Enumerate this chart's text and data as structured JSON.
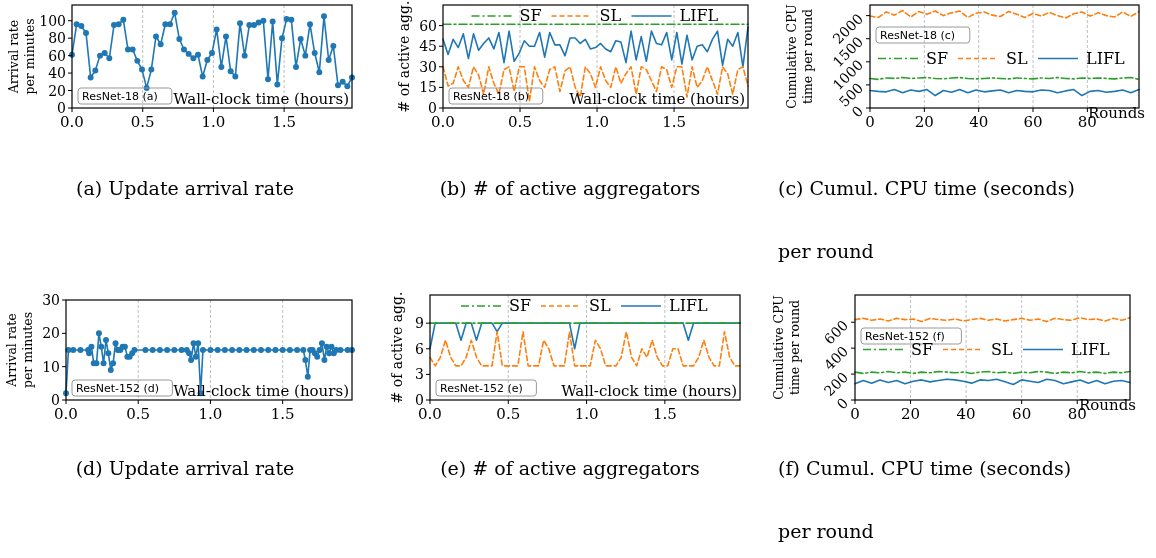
{
  "chart_data": [
    {
      "type": "line",
      "title": "(a) Update arrival rate",
      "xlabel": "Wall-clock time (hours)",
      "ylabel": "Arrival rate per minutes",
      "annotations": [
        "ResNet-18 (a)"
      ],
      "x": [
        0,
        0.033,
        0.066,
        0.099,
        0.132,
        0.165,
        0.198,
        0.231,
        0.264,
        0.297,
        0.33,
        0.363,
        0.396,
        0.429,
        0.462,
        0.495,
        0.528,
        0.561,
        0.594,
        0.627,
        0.66,
        0.693,
        0.726,
        0.759,
        0.792,
        0.825,
        0.858,
        0.891,
        0.924,
        0.957,
        0.99,
        1.023,
        1.056,
        1.089,
        1.122,
        1.155,
        1.188,
        1.221,
        1.254,
        1.287,
        1.32,
        1.353,
        1.386,
        1.419,
        1.452,
        1.485,
        1.518,
        1.551,
        1.584,
        1.617,
        1.65,
        1.683,
        1.716,
        1.749,
        1.782,
        1.815,
        1.848,
        1.881,
        1.914,
        1.947,
        1.98
      ],
      "series": [
        {
          "color": "#1f77b4",
          "values": [
            61,
            96,
            94,
            86,
            35,
            43,
            60,
            63,
            57,
            95,
            96,
            101,
            67,
            67,
            54,
            44,
            23,
            44,
            82,
            73,
            96,
            96,
            109,
            79,
            67,
            62,
            57,
            61,
            36,
            55,
            63,
            90,
            47,
            82,
            42,
            36,
            97,
            60,
            95,
            95,
            98,
            100,
            33,
            99,
            27,
            80,
            102,
            101,
            47,
            79,
            60,
            96,
            63,
            41,
            105,
            55,
            71,
            26,
            30,
            25,
            35
          ]
        }
      ],
      "xlim": [
        0,
        1.98
      ],
      "ylim": [
        0,
        118
      ],
      "xticks": [
        {
          "value": 0,
          "label": "0.0"
        },
        {
          "value": 0.5,
          "label": "0.5"
        },
        {
          "value": 1,
          "label": "1.0"
        },
        {
          "value": 1.5,
          "label": "1.5"
        }
      ],
      "yticks": [
        0,
        20,
        40,
        60,
        80,
        100
      ],
      "grid": "x",
      "marker": "circle",
      "line_style": "solid"
    },
    {
      "type": "line",
      "title": "(b) # of active aggregators",
      "xlabel": "Wall-clock time (hours)",
      "ylabel": "# of active agg.",
      "annotations": [
        "ResNet-18 (b)"
      ],
      "x": [
        0,
        0.033,
        0.066,
        0.099,
        0.132,
        0.165,
        0.198,
        0.231,
        0.264,
        0.297,
        0.33,
        0.363,
        0.396,
        0.429,
        0.462,
        0.495,
        0.528,
        0.561,
        0.594,
        0.627,
        0.66,
        0.693,
        0.726,
        0.759,
        0.792,
        0.825,
        0.858,
        0.891,
        0.924,
        0.957,
        0.99,
        1.023,
        1.056,
        1.089,
        1.122,
        1.155,
        1.188,
        1.221,
        1.254,
        1.287,
        1.32,
        1.353,
        1.386,
        1.419,
        1.452,
        1.485,
        1.518,
        1.551,
        1.584,
        1.617,
        1.65,
        1.683,
        1.716,
        1.749,
        1.782,
        1.815,
        1.848,
        1.881,
        1.914,
        1.947,
        1.98
      ],
      "series": [
        {
          "name": "SF",
          "color": "#2ca02c",
          "line_style": "dashdot",
          "values": [
            61,
            61,
            61,
            61,
            61,
            61,
            61,
            61,
            61,
            61,
            61,
            61,
            61,
            61,
            61,
            61,
            61,
            61,
            61,
            61,
            61,
            61,
            61,
            61,
            61,
            61,
            61,
            61,
            61,
            61,
            61,
            61,
            61,
            61,
            61,
            61,
            61,
            61,
            61,
            61,
            61,
            61,
            61,
            61,
            61,
            61,
            61,
            61,
            61,
            61,
            61,
            61,
            61,
            61,
            61,
            61,
            61,
            61,
            61,
            61,
            61
          ]
        },
        {
          "name": "SL",
          "color": "#ff7f0e",
          "line_style": "dashed",
          "values": [
            30,
            16,
            18,
            30,
            20,
            15,
            30,
            24,
            10,
            30,
            18,
            10,
            28,
            30,
            12,
            30,
            30,
            5,
            30,
            20,
            15,
            28,
            30,
            12,
            27,
            30,
            15,
            8,
            30,
            25,
            15,
            30,
            20,
            15,
            30,
            18,
            25,
            30,
            10,
            30,
            28,
            20,
            12,
            30,
            28,
            15,
            30,
            30,
            8,
            30,
            15,
            20,
            30,
            20,
            10,
            30,
            25,
            10,
            28,
            30,
            16
          ]
        },
        {
          "name": "LIFL",
          "color": "#1f77b4",
          "line_style": "solid",
          "values": [
            50,
            39,
            50,
            44,
            54,
            36,
            54,
            42,
            47,
            51,
            43,
            55,
            33,
            56,
            34,
            40,
            49,
            45,
            45,
            55,
            37,
            55,
            46,
            46,
            38,
            51,
            51,
            47,
            50,
            43,
            44,
            47,
            43,
            41,
            49,
            48,
            33,
            56,
            35,
            52,
            34,
            56,
            47,
            46,
            55,
            35,
            55,
            32,
            53,
            35,
            45,
            46,
            41,
            50,
            56,
            31,
            50,
            45,
            55,
            30,
            59
          ]
        }
      ],
      "xlim": [
        0,
        1.98
      ],
      "ylim": [
        0,
        75
      ],
      "xticks": [
        {
          "value": 0,
          "label": "0.0"
        },
        {
          "value": 0.5,
          "label": "0.5"
        },
        {
          "value": 1,
          "label": "1.0"
        },
        {
          "value": 1.5,
          "label": "1.5"
        }
      ],
      "yticks": [
        0,
        15,
        30,
        45,
        60
      ],
      "grid": "x",
      "legend": "top"
    },
    {
      "type": "line",
      "title": "(c) Cumul. CPU time (seconds) per round",
      "xlabel": "Rounds",
      "ylabel": "Cumulative CPU time per round",
      "annotations": [
        "ResNet-18 (c)"
      ],
      "x": [
        0,
        3,
        6,
        9,
        12,
        15,
        18,
        21,
        24,
        27,
        30,
        33,
        36,
        39,
        42,
        45,
        48,
        51,
        54,
        57,
        60,
        63,
        66,
        69,
        72,
        75,
        78,
        81,
        84,
        87,
        90,
        93,
        96,
        99
      ],
      "series": [
        {
          "name": "SF",
          "color": "#2ca02c",
          "line_style": "dashdot",
          "values": [
            640,
            620,
            650,
            640,
            660,
            640,
            650,
            660,
            640,
            630,
            650,
            660,
            640,
            630,
            640,
            650,
            640,
            630,
            650,
            640,
            630,
            650,
            640,
            660,
            640,
            630,
            650,
            640,
            650,
            640,
            630,
            650,
            660,
            620
          ]
        },
        {
          "name": "SL",
          "color": "#ff7f0e",
          "line_style": "dashed",
          "values": [
            1990,
            1960,
            2080,
            2010,
            2110,
            1970,
            2090,
            2030,
            2100,
            2000,
            2060,
            2100,
            1960,
            2050,
            2080,
            2010,
            1980,
            2090,
            2030,
            1960,
            2050,
            1990,
            2070,
            2000,
            1950,
            2040,
            2080,
            1990,
            2060,
            2000,
            1970,
            2080,
            1980,
            2090
          ]
        },
        {
          "name": "LIFL",
          "color": "#1f77b4",
          "line_style": "solid",
          "values": [
            380,
            360,
            350,
            400,
            330,
            390,
            360,
            400,
            270,
            380,
            340,
            400,
            330,
            390,
            350,
            370,
            390,
            330,
            380,
            360,
            350,
            390,
            380,
            330,
            370,
            400,
            270,
            360,
            380,
            340,
            360,
            390,
            330,
            400
          ]
        }
      ],
      "xlim": [
        0,
        99
      ],
      "ylim": [
        0,
        2230
      ],
      "xticks": [
        0,
        20,
        40,
        60,
        80
      ],
      "yticks": [
        0,
        500,
        1000,
        1500,
        2000
      ],
      "grid": "x",
      "legend": "left"
    },
    {
      "type": "line",
      "title": "(d) Update arrival rate",
      "xlabel": "Wall-clock time (hours)",
      "ylabel": "Arrival rate per minutes",
      "annotations": [
        "ResNet-152 (d)"
      ],
      "x": [
        0,
        0.017,
        0.05,
        0.1,
        0.153,
        0.16,
        0.176,
        0.192,
        0.211,
        0.228,
        0.244,
        0.26,
        0.277,
        0.293,
        0.31,
        0.326,
        0.343,
        0.359,
        0.376,
        0.392,
        0.408,
        0.425,
        0.441,
        0.458,
        0.474,
        0.55,
        0.6,
        0.65,
        0.7,
        0.75,
        0.8,
        0.836,
        0.852,
        0.866,
        0.883,
        0.899,
        0.915,
        0.932,
        0.948,
        1.0,
        1.05,
        1.1,
        1.15,
        1.2,
        1.25,
        1.3,
        1.35,
        1.4,
        1.45,
        1.5,
        1.55,
        1.6,
        1.643,
        1.657,
        1.674,
        1.69,
        1.707,
        1.723,
        1.739,
        1.756,
        1.772,
        1.789,
        1.805,
        1.822,
        1.838,
        1.854,
        1.871,
        1.9,
        1.95,
        1.98
      ],
      "series": [
        {
          "color": "#1f77b4",
          "values": [
            2,
            15,
            15,
            15,
            15,
            14,
            16,
            11,
            11,
            20,
            16,
            11,
            18,
            14,
            9,
            11,
            17,
            15,
            15,
            16,
            16,
            13,
            13,
            14,
            15,
            15,
            15,
            15,
            15,
            15,
            15,
            15,
            14,
            12,
            17,
            13,
            17,
            2,
            15,
            15,
            15,
            15,
            15,
            15,
            15,
            15,
            15,
            15,
            15,
            15,
            15,
            15,
            15,
            12,
            7,
            15,
            15,
            14,
            13,
            15,
            17,
            12,
            16,
            14,
            16,
            14,
            15,
            15,
            15,
            15
          ]
        }
      ],
      "xlim": [
        0,
        1.98
      ],
      "ylim": [
        0,
        30
      ],
      "xticks": [
        {
          "value": 0,
          "label": "0.0"
        },
        {
          "value": 0.5,
          "label": "0.5"
        },
        {
          "value": 1,
          "label": "1.0"
        },
        {
          "value": 1.5,
          "label": "1.5"
        }
      ],
      "yticks": [
        0,
        10,
        20,
        30
      ],
      "grid": "x",
      "marker": "circle",
      "line_style": "solid"
    },
    {
      "type": "line",
      "title": "(e) # of active aggregators",
      "xlabel": "Wall-clock time (hours)",
      "ylabel": "# of active agg.",
      "annotations": [
        "ResNet-152 (e)"
      ],
      "x": [
        0,
        0.033,
        0.066,
        0.099,
        0.132,
        0.165,
        0.198,
        0.231,
        0.264,
        0.297,
        0.33,
        0.363,
        0.396,
        0.429,
        0.462,
        0.495,
        0.528,
        0.561,
        0.594,
        0.627,
        0.66,
        0.693,
        0.726,
        0.759,
        0.792,
        0.825,
        0.858,
        0.891,
        0.924,
        0.957,
        0.99,
        1.023,
        1.056,
        1.089,
        1.122,
        1.155,
        1.188,
        1.221,
        1.254,
        1.287,
        1.32,
        1.353,
        1.386,
        1.419,
        1.452,
        1.485,
        1.518,
        1.551,
        1.584,
        1.617,
        1.65,
        1.683,
        1.716,
        1.749,
        1.782,
        1.815,
        1.848,
        1.881,
        1.914,
        1.947,
        1.98
      ],
      "series": [
        {
          "name": "SF",
          "color": "#2ca02c",
          "line_style": "dashdot",
          "values": [
            9,
            9,
            9,
            9,
            9,
            9,
            9,
            9,
            9,
            9,
            9,
            9,
            9,
            9,
            9,
            9,
            9,
            9,
            9,
            9,
            9,
            9,
            9,
            9,
            9,
            9,
            9,
            9,
            9,
            9,
            9,
            9,
            9,
            9,
            9,
            9,
            9,
            9,
            9,
            9,
            9,
            9,
            9,
            9,
            9,
            9,
            9,
            9,
            9,
            9,
            9,
            9,
            9,
            9,
            9,
            9,
            9,
            9,
            9,
            9,
            9
          ]
        },
        {
          "name": "SL",
          "color": "#ff7f0e",
          "line_style": "dashed",
          "values": [
            5,
            4,
            5,
            7,
            5,
            4,
            4,
            5,
            7,
            5,
            4,
            4,
            4,
            8,
            4,
            4,
            4,
            4,
            8,
            4,
            4,
            4,
            7,
            6,
            4,
            4,
            4,
            8,
            4,
            4,
            4,
            4,
            7,
            6,
            4,
            4,
            4,
            5,
            8,
            5,
            4,
            6,
            5,
            7,
            5,
            4,
            4,
            6,
            6,
            4,
            4,
            4,
            5,
            7,
            5,
            4,
            4,
            8,
            5,
            4,
            4
          ]
        },
        {
          "name": "LIFL",
          "color": "#1f77b4",
          "line_style": "solid",
          "values": [
            6,
            9,
            9,
            9,
            9,
            9,
            7,
            9,
            9,
            7,
            9,
            9,
            9,
            8,
            9,
            9,
            9,
            9,
            9,
            9,
            9,
            9,
            9,
            9,
            9,
            9,
            9,
            9,
            6,
            9,
            9,
            9,
            9,
            9,
            9,
            9,
            9,
            9,
            9,
            9,
            9,
            9,
            9,
            9,
            9,
            9,
            9,
            9,
            9,
            9,
            7,
            9,
            9,
            9,
            9,
            9,
            9,
            9,
            9,
            9,
            9
          ]
        }
      ],
      "xlim": [
        0,
        1.98
      ],
      "ylim": [
        0,
        12.3
      ],
      "xticks": [
        {
          "value": 0,
          "label": "0.0"
        },
        {
          "value": 0.5,
          "label": "0.5"
        },
        {
          "value": 1,
          "label": "1.0"
        },
        {
          "value": 1.5,
          "label": "1.5"
        }
      ],
      "yticks": [
        0,
        3,
        6,
        9
      ],
      "grid": "x",
      "legend": "top"
    },
    {
      "type": "line",
      "title": "(f) Cumul. CPU time (seconds) per round",
      "xlabel": "Rounds",
      "ylabel": "Cumulative CPU time per round",
      "annotations": [
        "ResNet-152 (f)"
      ],
      "x": [
        0,
        3,
        6,
        9,
        12,
        15,
        18,
        21,
        24,
        27,
        30,
        33,
        36,
        39,
        42,
        45,
        48,
        51,
        54,
        57,
        60,
        63,
        66,
        69,
        72,
        75,
        78,
        81,
        84,
        87,
        90,
        93,
        96,
        99
      ],
      "series": [
        {
          "name": "SF",
          "color": "#2ca02c",
          "line_style": "dashdot",
          "values": [
            215,
            205,
            215,
            210,
            220,
            210,
            215,
            205,
            215,
            210,
            220,
            215,
            210,
            215,
            205,
            215,
            220,
            210,
            215,
            205,
            215,
            210,
            220,
            215,
            205,
            215,
            210,
            220,
            210,
            215,
            205,
            215,
            210,
            220
          ]
        },
        {
          "name": "SL",
          "color": "#ff7f0e",
          "line_style": "dashed",
          "values": [
            620,
            630,
            615,
            625,
            610,
            630,
            620,
            625,
            605,
            630,
            620,
            615,
            625,
            610,
            620,
            630,
            615,
            625,
            610,
            620,
            630,
            615,
            625,
            605,
            630,
            620,
            615,
            635,
            620,
            625,
            610,
            630,
            615,
            635
          ]
        },
        {
          "name": "LIFL",
          "color": "#1f77b4",
          "line_style": "solid",
          "values": [
            125,
            150,
            130,
            155,
            135,
            150,
            125,
            145,
            155,
            140,
            150,
            160,
            155,
            145,
            130,
            155,
            150,
            160,
            140,
            120,
            155,
            145,
            135,
            160,
            150,
            125,
            140,
            155,
            130,
            150,
            125,
            145,
            150,
            135
          ]
        }
      ],
      "xlim": [
        0,
        99
      ],
      "ylim": [
        0,
        810
      ],
      "xticks": [
        0,
        20,
        40,
        60,
        80
      ],
      "yticks": [
        0,
        200,
        400,
        600
      ],
      "grid": "x",
      "legend": "left"
    }
  ]
}
